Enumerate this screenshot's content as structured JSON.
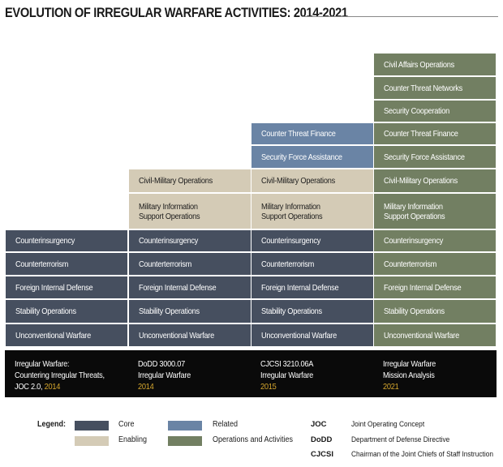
{
  "title": "EVOLUTION OF IRREGULAR WARFARE ACTIVITIES: 2014-2021",
  "colors": {
    "core": "#464f5f",
    "enabling": "#d4cbb6",
    "related": "#6a84a5",
    "ops": "#727f62",
    "year": "#d7a82e"
  },
  "columns": [
    {
      "cells": [
        {
          "label": "Counterinsurgency",
          "type": "core"
        },
        {
          "label": "Counterterrorism",
          "type": "core"
        },
        {
          "label": "Foreign Internal Defense",
          "type": "core"
        },
        {
          "label": "Stability Operations",
          "type": "core"
        },
        {
          "label": "Unconventional Warfare",
          "type": "core"
        }
      ],
      "doc_lines": [
        "Irregular Warfare:",
        "Countering Irregular Threats,"
      ],
      "doc_prefix": "JOC 2.0, ",
      "year": "2014"
    },
    {
      "cells": [
        {
          "label": "Civil-Military Operations",
          "type": "enabling"
        },
        {
          "label": "Military Information\nSupport Operations",
          "type": "enabling"
        },
        {
          "label": "Counterinsurgency",
          "type": "core"
        },
        {
          "label": "Counterterrorism",
          "type": "core"
        },
        {
          "label": "Foreign Internal Defense",
          "type": "core"
        },
        {
          "label": "Stability Operations",
          "type": "core"
        },
        {
          "label": "Unconventional Warfare",
          "type": "core"
        }
      ],
      "doc_lines": [
        "DoDD 3000.07",
        "Irregular Warfare"
      ],
      "doc_prefix": "",
      "year": "2014"
    },
    {
      "cells": [
        {
          "label": "Counter Threat Finance",
          "type": "related"
        },
        {
          "label": "Security Force Assistance",
          "type": "related"
        },
        {
          "label": "Civil-Military Operations",
          "type": "enabling"
        },
        {
          "label": "Military Information\nSupport Operations",
          "type": "enabling"
        },
        {
          "label": "Counterinsurgency",
          "type": "core"
        },
        {
          "label": "Counterterrorism",
          "type": "core"
        },
        {
          "label": "Foreign Internal Defense",
          "type": "core"
        },
        {
          "label": "Stability Operations",
          "type": "core"
        },
        {
          "label": "Unconventional Warfare",
          "type": "core"
        }
      ],
      "doc_lines": [
        "CJCSI 3210.06A",
        "Irregular Warfare"
      ],
      "doc_prefix": "",
      "year": "2015"
    },
    {
      "cells": [
        {
          "label": "Civil Affairs Operations",
          "type": "ops"
        },
        {
          "label": "Counter Threat Networks",
          "type": "ops"
        },
        {
          "label": "Security Cooperation",
          "type": "ops"
        },
        {
          "label": "Counter Threat Finance",
          "type": "ops"
        },
        {
          "label": "Security Force Assistance",
          "type": "ops"
        },
        {
          "label": "Civil-Military Operations",
          "type": "ops"
        },
        {
          "label": "Military Information\nSupport Operations",
          "type": "ops"
        },
        {
          "label": "Counterinsurgency",
          "type": "ops"
        },
        {
          "label": "Counterterrorism",
          "type": "ops"
        },
        {
          "label": "Foreign Internal Defense",
          "type": "ops"
        },
        {
          "label": "Stability Operations",
          "type": "ops"
        },
        {
          "label": "Unconventional Warfare",
          "type": "ops"
        }
      ],
      "doc_lines": [
        "Irregular Warfare",
        "Mission Analysis"
      ],
      "doc_prefix": "",
      "year": "2021"
    }
  ],
  "legend": {
    "title": "Legend:",
    "items": [
      {
        "label": "Core",
        "type": "core"
      },
      {
        "label": "Related",
        "type": "related"
      },
      {
        "label": "Enabling",
        "type": "enabling"
      },
      {
        "label": "Operations and Activities",
        "type": "ops"
      }
    ],
    "abbreviations": [
      {
        "abbr": "JOC",
        "definition": "Joint Operating Concept"
      },
      {
        "abbr": "DoDD",
        "definition": "Department of Defense Directive"
      },
      {
        "abbr": "CJCSI",
        "definition": "Chairman of the Joint Chiefs of Staff Instruction"
      }
    ]
  }
}
